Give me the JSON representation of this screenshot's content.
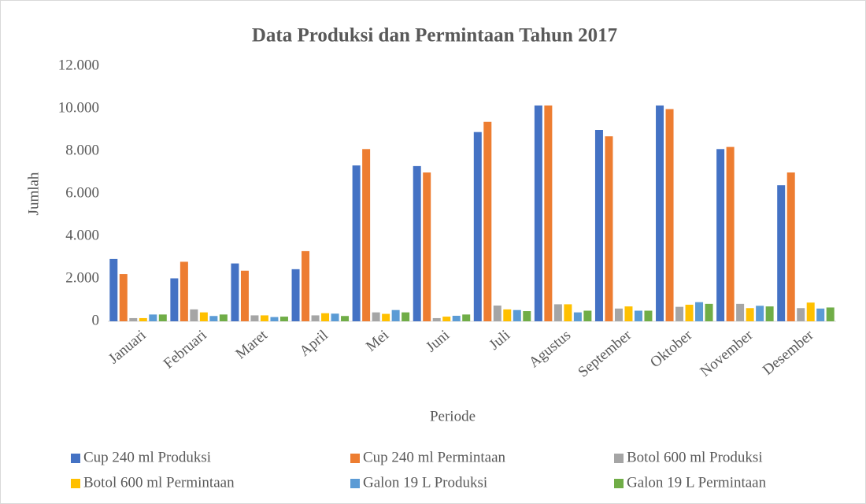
{
  "chart_data": {
    "type": "bar",
    "title": "Data Produksi dan Permintaan Tahun 2017",
    "x_label": "Periode",
    "y_label": "Jumlah",
    "categories": [
      "Januari",
      "Februari",
      "Maret",
      "April",
      "Mei",
      "Juni",
      "Juli",
      "Agustus",
      "September",
      "Oktober",
      "November",
      "Desember"
    ],
    "series": [
      {
        "name": "Cup 240 ml Produksi",
        "color": "#4472c4",
        "values": [
          2930,
          2020,
          2720,
          2450,
          7330,
          7300,
          8900,
          10150,
          9000,
          10150,
          8100,
          6400
        ]
      },
      {
        "name": "Cup 240 ml Permintaan",
        "color": "#ed7d31",
        "values": [
          2220,
          2800,
          2380,
          3300,
          8100,
          7000,
          9380,
          10150,
          8700,
          9980,
          8200,
          7000
        ]
      },
      {
        "name": "Botol 600 ml Produksi",
        "color": "#a5a5a5",
        "values": [
          150,
          560,
          280,
          280,
          420,
          150,
          740,
          800,
          600,
          680,
          820,
          620
        ]
      },
      {
        "name": "Botol 600 ml Permintaan",
        "color": "#ffc000",
        "values": [
          150,
          420,
          280,
          380,
          350,
          220,
          560,
          800,
          700,
          780,
          620,
          880
        ]
      },
      {
        "name": "Galon 19 L Produksi",
        "color": "#5b9bd5",
        "values": [
          320,
          250,
          200,
          360,
          530,
          260,
          530,
          420,
          500,
          900,
          730,
          600
        ]
      },
      {
        "name": "Galon 19 L Permintaan",
        "color": "#70ad47",
        "values": [
          320,
          320,
          220,
          250,
          420,
          320,
          480,
          500,
          500,
          820,
          700,
          650
        ]
      }
    ],
    "ylim": [
      0,
      12000
    ],
    "yticks": [
      0,
      {
        "value": 2000,
        "label": "2.000"
      },
      {
        "value": 4000,
        "label": "4.000"
      },
      {
        "value": 6000,
        "label": "6.000"
      },
      {
        "value": 8000,
        "label": "8.000"
      },
      {
        "value": 10000,
        "label": "10.000"
      },
      {
        "value": 12000,
        "label": "12.000"
      }
    ],
    "grid": false,
    "legend": "bottom"
  }
}
